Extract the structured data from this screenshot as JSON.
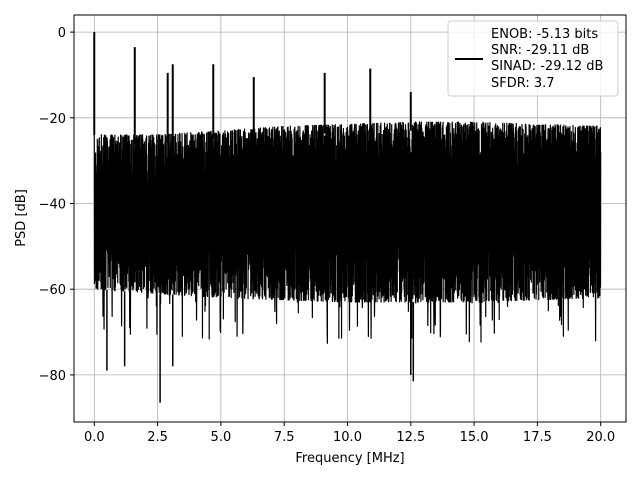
{
  "chart_data": {
    "type": "line",
    "title": "",
    "xlabel": "Frequency [MHz]",
    "ylabel": "PSD [dB]",
    "xlim": [
      -0.8,
      21.0
    ],
    "ylim": [
      -91,
      4
    ],
    "xticks": [
      0.0,
      2.5,
      5.0,
      7.5,
      10.0,
      12.5,
      15.0,
      17.5,
      20.0
    ],
    "xtick_labels": [
      "0.0",
      "2.5",
      "5.0",
      "7.5",
      "10.0",
      "12.5",
      "15.0",
      "17.5",
      "20.0"
    ],
    "yticks": [
      0,
      -20,
      -40,
      -60,
      -80
    ],
    "ytick_labels": [
      "0",
      "−20",
      "−40",
      "−60",
      "−80"
    ],
    "grid": true,
    "legend_position": "top-right",
    "series": [
      {
        "color": "#000000",
        "x_range": [
          0.0,
          20.0
        ],
        "upper_envelope": [
          [
            0.0,
            -22
          ],
          [
            0.3,
            -24
          ],
          [
            2.5,
            -24
          ],
          [
            7.5,
            -22
          ],
          [
            12.5,
            -21
          ],
          [
            15.0,
            -21
          ],
          [
            20.0,
            -22
          ]
        ],
        "lower_envelope": [
          [
            0.0,
            -60
          ],
          [
            5.0,
            -62
          ],
          [
            10.0,
            -63
          ],
          [
            15.0,
            -63
          ],
          [
            20.0,
            -62
          ]
        ],
        "peaks": [
          {
            "x": 0.0,
            "y": 0.0
          },
          {
            "x": 1.6,
            "y": -3.5
          },
          {
            "x": 3.1,
            "y": -7.5
          },
          {
            "x": 2.9,
            "y": -9.5
          },
          {
            "x": 4.7,
            "y": -7.5
          },
          {
            "x": 6.3,
            "y": -10.5
          },
          {
            "x": 9.1,
            "y": -9.5
          },
          {
            "x": 10.9,
            "y": -8.5
          },
          {
            "x": 12.5,
            "y": -14.0
          }
        ],
        "dips": [
          {
            "x": 0.5,
            "y": -79
          },
          {
            "x": 1.2,
            "y": -78
          },
          {
            "x": 2.6,
            "y": -86.5
          },
          {
            "x": 3.1,
            "y": -78
          },
          {
            "x": 12.6,
            "y": -81.5
          },
          {
            "x": 12.5,
            "y": -80
          }
        ]
      }
    ],
    "legend": [
      {
        "label": "ENOB: -5.13 bits",
        "color": "#000000",
        "swatch": true
      },
      {
        "label": "SNR: -29.11 dB",
        "color": "#000000",
        "swatch": false
      },
      {
        "label": "SINAD: -29.12 dB",
        "color": "#000000",
        "swatch": false
      },
      {
        "label": "SFDR: 3.7",
        "color": "#000000",
        "swatch": false
      }
    ]
  }
}
